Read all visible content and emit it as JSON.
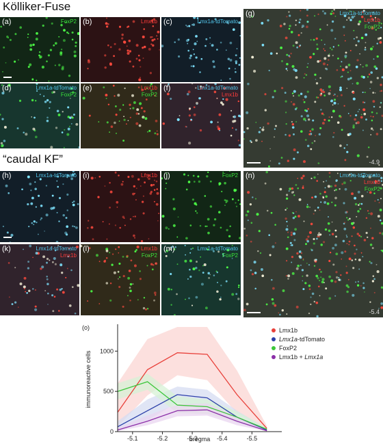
{
  "headings": {
    "kf": "Kölliker-Fuse",
    "caudal": "“caudal KF”"
  },
  "panels": {
    "a": {
      "label": "(a)",
      "channels": [
        {
          "text": "FoxP2",
          "color": "green"
        }
      ]
    },
    "b": {
      "label": "(b)",
      "channels": [
        {
          "text": "Lmx1b",
          "color": "red"
        }
      ]
    },
    "c": {
      "label": "(c)",
      "channels": [
        {
          "text": "Lmx1a-tdTomato",
          "color": "cyan"
        }
      ]
    },
    "d": {
      "label": "(d)",
      "channels": [
        {
          "text": "Lmx1a-tdTomato",
          "color": "cyan"
        },
        {
          "text": "FoxP2",
          "color": "green"
        }
      ]
    },
    "e": {
      "label": "(e)",
      "channels": [
        {
          "text": "Lmx1b",
          "color": "red"
        },
        {
          "text": "FoxP2",
          "color": "green"
        }
      ]
    },
    "f": {
      "label": "(f)",
      "channels": [
        {
          "text": "Lmx1a-tdTomato",
          "color": "cyan"
        },
        {
          "text": "Lmx1b",
          "color": "red"
        }
      ]
    },
    "g": {
      "label": "(g)",
      "channels": [
        {
          "text": "Lmx1a-tdTomato",
          "color": "cyan"
        },
        {
          "text": "Lmx1b",
          "color": "red"
        },
        {
          "text": "FoxP2",
          "color": "green"
        }
      ],
      "bregma": "-4.9"
    },
    "h": {
      "label": "(h)",
      "channels": [
        {
          "text": "Lmx1a-tdTomato",
          "color": "cyan"
        }
      ]
    },
    "i": {
      "label": "(i)",
      "channels": [
        {
          "text": "Lmx1b",
          "color": "red"
        }
      ]
    },
    "j": {
      "label": "(j)",
      "channels": [
        {
          "text": "FoxP2",
          "color": "green"
        }
      ]
    },
    "k": {
      "label": "(k)",
      "channels": [
        {
          "text": "Lmx1a-tdTomato",
          "color": "cyan"
        },
        {
          "text": "Lmx1b",
          "color": "red"
        }
      ]
    },
    "l": {
      "label": "(l)",
      "channels": [
        {
          "text": "Lmx1b",
          "color": "red"
        },
        {
          "text": "FoxP2",
          "color": "green"
        }
      ]
    },
    "m": {
      "label": "(m)",
      "channels": [
        {
          "text": "Lmx1a-tdTomato",
          "color": "cyan"
        },
        {
          "text": "FoxP2",
          "color": "green"
        }
      ]
    },
    "n": {
      "label": "(n)",
      "channels": [
        {
          "text": "Lmx1a-tdTomato",
          "color": "cyan"
        },
        {
          "text": "Lmx1b",
          "color": "red"
        },
        {
          "text": "FoxP2",
          "color": "green"
        }
      ],
      "bregma": "-5.4"
    }
  },
  "colors": {
    "red": "#ff3b3b",
    "cyan": "#52c8ee",
    "green": "#39e23a"
  },
  "chart_label": "(o)",
  "chart_data": {
    "type": "line",
    "xlabel": "bregma",
    "ylabel": "immunoreactive cells",
    "x": [
      -5.05,
      -5.15,
      -5.25,
      -5.35,
      -5.45,
      -5.55
    ],
    "xticks": [
      "-5.1",
      "-5.2",
      "-5.3",
      "-5.4",
      "-5.5"
    ],
    "xtick_values": [
      -5.1,
      -5.2,
      -5.3,
      -5.4,
      -5.5
    ],
    "yticks": [
      0,
      500,
      1000
    ],
    "xlim": [
      -5.05,
      -5.6
    ],
    "ylim": [
      0,
      1300
    ],
    "grid": false,
    "legend_position": "top-right",
    "series": [
      {
        "name": "Lmx1b",
        "color": "#e8403a",
        "band": "#fbd6d3",
        "values": [
          240,
          770,
          980,
          960,
          460,
          40
        ],
        "upper": [
          600,
          1150,
          1300,
          1300,
          760,
          70
        ],
        "lower": [
          60,
          450,
          700,
          640,
          230,
          20
        ]
      },
      {
        "name": "Lmx1a-tdTomato",
        "name_italic": "Lmx1a",
        "name_rest": "-tdTomato",
        "color": "#2b3fa8",
        "band": "#d6dcf2",
        "values": [
          60,
          260,
          460,
          420,
          180,
          20
        ],
        "upper": [
          130,
          400,
          560,
          520,
          260,
          40
        ],
        "lower": [
          20,
          140,
          360,
          300,
          110,
          10
        ]
      },
      {
        "name": "FoxP2",
        "color": "#3cc63a",
        "band": "#d7f2d6",
        "values": [
          500,
          620,
          330,
          310,
          180,
          30
        ],
        "upper": [
          600,
          720,
          440,
          400,
          250,
          50
        ],
        "lower": [
          400,
          520,
          230,
          220,
          120,
          15
        ]
      },
      {
        "name": "Lmx1b + Lmx1a",
        "name_plain": "Lmx1b + ",
        "name_italic": "Lmx1a",
        "color": "#8b2fa8",
        "band": "#ead6f0",
        "values": [
          20,
          130,
          260,
          270,
          130,
          10
        ],
        "upper": [
          50,
          200,
          340,
          350,
          190,
          25
        ],
        "lower": [
          5,
          80,
          190,
          200,
          80,
          5
        ]
      }
    ]
  }
}
